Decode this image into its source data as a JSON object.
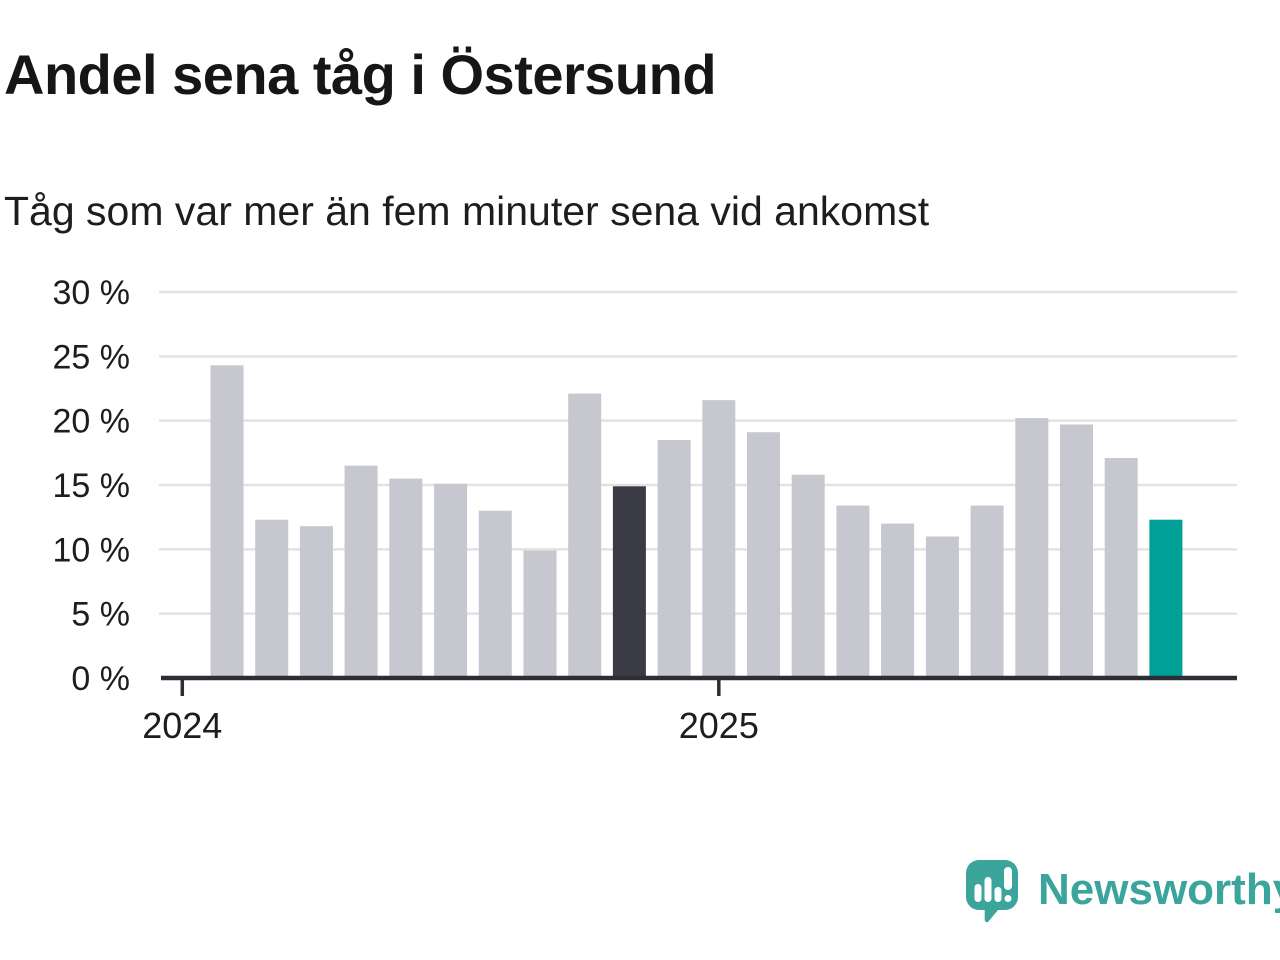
{
  "title": "Andel sena tåg i Östersund",
  "subtitle": "Tåg som var mer än fem minuter sena vid ankomst",
  "branding": {
    "name": "Newsworthy",
    "icon": "speech-bubble-bar-chart-icon",
    "brand_color": "#3ba49b"
  },
  "chart_data": {
    "type": "bar",
    "title": "Andel sena tåg i Östersund",
    "subtitle": "Tåg som var mer än fem minuter sena vid ankomst",
    "unit": "%",
    "values": [
      24.3,
      12.3,
      11.8,
      16.5,
      15.5,
      15.1,
      13.0,
      9.9,
      22.1,
      14.9,
      18.5,
      21.6,
      19.1,
      15.8,
      13.4,
      12.0,
      11.0,
      13.4,
      20.2,
      19.7,
      17.1,
      12.3
    ],
    "highlight_dark_index": 9,
    "highlight_teal_index": 21,
    "ylim": [
      0,
      30
    ],
    "y_tick_step": 5,
    "y_tick_labels": [
      "0 %",
      "5 %",
      "10 %",
      "15 %",
      "20 %",
      "25 %",
      "30 %"
    ],
    "x_tick_labels": [
      "2024",
      "2025"
    ],
    "x_tick_slots": [
      -1,
      11
    ],
    "grid": true,
    "legend": false,
    "colors": {
      "bar": "#c7c7cf",
      "dark": "#3b3b46",
      "teal": "#00a096",
      "grid": "#e2e2e4",
      "axis": "#2d2d35",
      "text": "#1d1d1d"
    }
  }
}
